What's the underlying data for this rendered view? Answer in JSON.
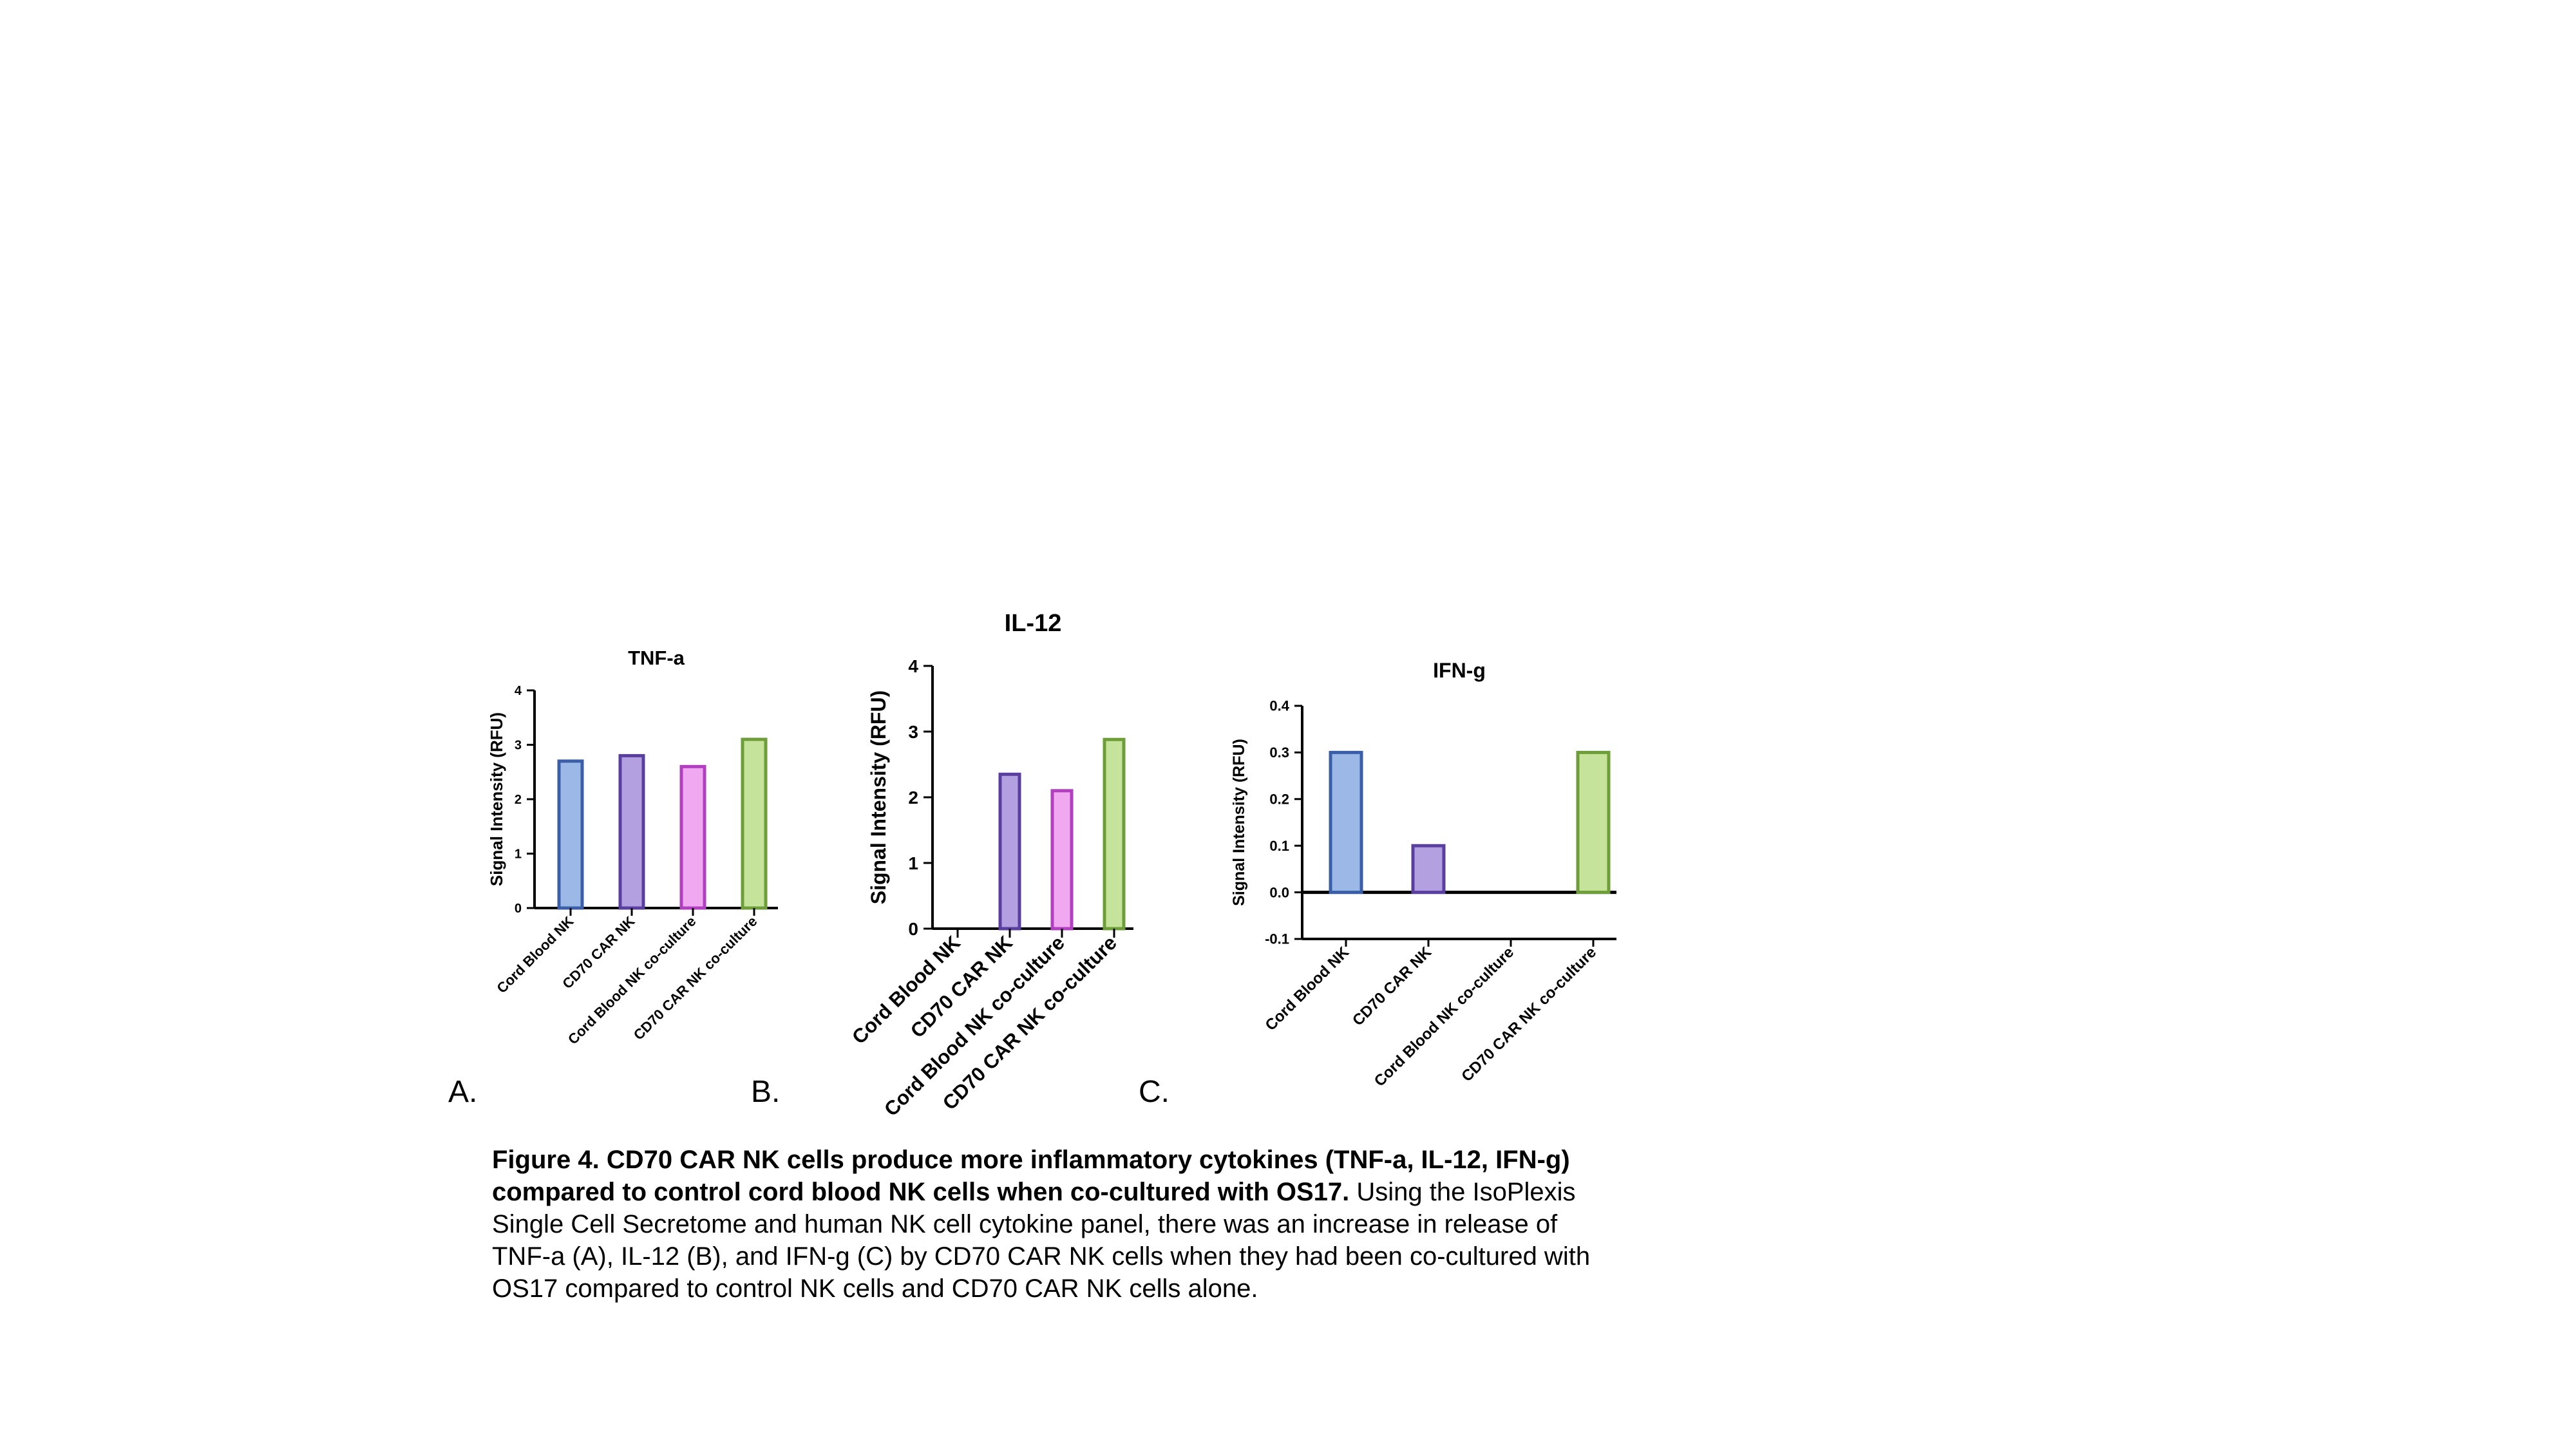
{
  "chart_data": [
    {
      "type": "bar",
      "title": "TNF-a",
      "ylabel": "Signal Intensity (RFU)",
      "xlabel": "",
      "categories": [
        "Cord Blood NK",
        "CD70 CAR NK",
        "Cord Blood NK co-culture",
        "CD70 CAR NK co-culture"
      ],
      "values": [
        2.7,
        2.8,
        2.6,
        3.1
      ],
      "ylim": [
        0,
        4
      ],
      "yticks": [
        "0",
        "1",
        "2",
        "3",
        "4"
      ],
      "grid": false,
      "colors": {
        "fill": [
          "#9bb8e6",
          "#b3a0e0",
          "#f0a8f0",
          "#c6e39b"
        ],
        "stroke": [
          "#3a5fa8",
          "#5a3fa0",
          "#b23fc0",
          "#6e9e3a"
        ]
      }
    },
    {
      "type": "bar",
      "title": "IL-12",
      "ylabel": "Signal Intensity (RFU)",
      "xlabel": "",
      "categories": [
        "Cord Blood NK",
        "CD70 CAR NK",
        "Cord Blood NK co-culture",
        "CD70 CAR NK co-culture"
      ],
      "values": [
        0,
        2.35,
        2.1,
        2.88
      ],
      "ylim": [
        0,
        4
      ],
      "yticks": [
        "0",
        "1",
        "2",
        "3",
        "4"
      ],
      "grid": false,
      "colors": {
        "fill": [
          "#9bb8e6",
          "#b3a0e0",
          "#f0a8f0",
          "#c6e39b"
        ],
        "stroke": [
          "#3a5fa8",
          "#5a3fa0",
          "#b23fc0",
          "#6e9e3a"
        ]
      }
    },
    {
      "type": "bar",
      "title": "IFN-g",
      "ylabel": "Signal Intensity (RFU)",
      "xlabel": "",
      "categories": [
        "Cord Blood NK",
        "CD70 CAR NK",
        "Cord Blood NK co-culture",
        "CD70 CAR NK co-culture"
      ],
      "values": [
        0.3,
        0.1,
        0,
        0.3
      ],
      "ylim": [
        -0.1,
        0.4
      ],
      "yticks": [
        "-0.1",
        "0.0",
        "0.1",
        "0.2",
        "0.3",
        "0.4"
      ],
      "grid": false,
      "colors": {
        "fill": [
          "#9bb8e6",
          "#b3a0e0",
          "#f0a8f0",
          "#c6e39b"
        ],
        "stroke": [
          "#3a5fa8",
          "#5a3fa0",
          "#b23fc0",
          "#6e9e3a"
        ]
      }
    }
  ],
  "panel_labels": [
    "A.",
    "B.",
    "C."
  ],
  "caption": {
    "bold": "Figure 4. CD70 CAR NK cells produce more inflammatory cytokines (TNF-a, IL-12, IFN-g) compared to control cord blood NK cells when co-cultured with OS17.",
    "text": " Using the IsoPlexis Single Cell Secretome and human NK cell cytokine panel, there was an increase in release of TNF-a (A), IL-12 (B), and IFN-g (C) by CD70 CAR NK cells when they had been co-cultured with OS17 compared to control NK cells and CD70 CAR NK cells alone."
  }
}
